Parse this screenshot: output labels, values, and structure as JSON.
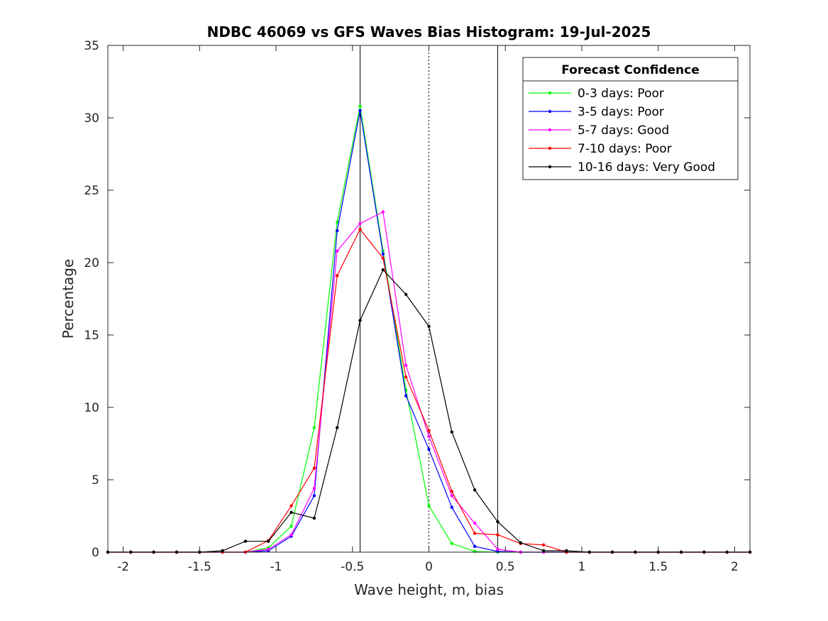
{
  "chart_data": {
    "type": "line",
    "title": "NDBC 46069 vs GFS Waves Bias Histogram: 19-Jul-2025",
    "xlabel": "Wave height, m, bias",
    "ylabel": "Percentage",
    "xlim": [
      -2.1,
      2.1
    ],
    "ylim": [
      0,
      35
    ],
    "xticks": [
      -2,
      -1.5,
      -1,
      -0.5,
      0,
      0.5,
      1,
      1.5,
      2
    ],
    "xtick_labels": [
      "-2",
      "-1.5",
      "-1",
      "-0.5",
      "0",
      "0.5",
      "1",
      "1.5",
      "2"
    ],
    "yticks": [
      0,
      5,
      10,
      15,
      20,
      25,
      30,
      35
    ],
    "ytick_labels": [
      "0",
      "5",
      "10",
      "15",
      "20",
      "25",
      "30",
      "35"
    ],
    "grid": false,
    "legend": {
      "title": "Forecast Confidence",
      "placement": "top-right"
    },
    "x": [
      -2.1,
      -1.95,
      -1.8,
      -1.65,
      -1.5,
      -1.35,
      -1.2,
      -1.05,
      -0.9,
      -0.75,
      -0.6,
      -0.45,
      -0.3,
      -0.15,
      0,
      0.15,
      0.3,
      0.45,
      0.6,
      0.75,
      0.9,
      1.05,
      1.2,
      1.35,
      1.5,
      1.65,
      1.8,
      1.95,
      2.1
    ],
    "reference_lines": [
      {
        "x": -0.45,
        "style": "solid",
        "color": "#000000"
      },
      {
        "x": 0,
        "style": "dotted",
        "color": "#000000"
      },
      {
        "x": 0.45,
        "style": "solid",
        "color": "#000000"
      }
    ],
    "series": [
      {
        "name": "0-3 days: Poor",
        "color": "#00ff00",
        "values": [
          0,
          0,
          0,
          0,
          0,
          0,
          0,
          0.3,
          1.8,
          8.6,
          22.8,
          30.8,
          20.8,
          11.2,
          3.2,
          0.6,
          0.05,
          0,
          0,
          0,
          0,
          0,
          0,
          0,
          0,
          0,
          0,
          0,
          0
        ]
      },
      {
        "name": "3-5 days: Poor",
        "color": "#0000ff",
        "values": [
          0,
          0,
          0,
          0,
          0,
          0,
          0,
          0.1,
          1.1,
          3.9,
          22.2,
          30.5,
          20.6,
          10.8,
          7.1,
          3.1,
          0.4,
          0.05,
          0,
          0,
          0,
          0,
          0,
          0,
          0,
          0,
          0,
          0,
          0
        ]
      },
      {
        "name": "5-7 days: Good",
        "color": "#ff00ff",
        "values": [
          0,
          0,
          0,
          0,
          0,
          0,
          0,
          0.2,
          1.2,
          4.4,
          20.8,
          22.7,
          23.5,
          12.9,
          8.0,
          3.9,
          2.0,
          0.2,
          0,
          0,
          0,
          0,
          0,
          0,
          0,
          0,
          0,
          0,
          0
        ]
      },
      {
        "name": "7-10 days: Poor",
        "color": "#ff0000",
        "values": [
          0,
          0,
          0,
          0,
          0,
          0,
          0,
          0.8,
          3.2,
          5.8,
          19.1,
          22.3,
          20.3,
          12.1,
          8.4,
          4.2,
          1.3,
          1.2,
          0.6,
          0.5,
          0,
          0,
          0,
          0,
          0,
          0,
          0,
          0,
          0
        ]
      },
      {
        "name": "10-16 days: Very Good",
        "color": "#000000",
        "values": [
          0,
          0,
          0,
          0,
          0,
          0.1,
          0.75,
          0.75,
          2.75,
          2.35,
          8.6,
          16.0,
          19.5,
          17.8,
          15.6,
          8.3,
          4.3,
          2.1,
          0.65,
          0.1,
          0.1,
          0,
          0,
          0,
          0,
          0,
          0,
          0,
          0
        ]
      }
    ]
  }
}
